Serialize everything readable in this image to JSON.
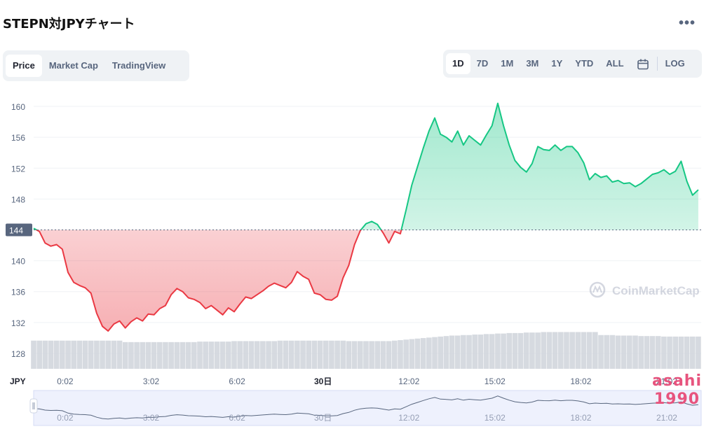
{
  "page_title": "STEPN対JPYチャート",
  "more_label": "•••",
  "tabs_left": [
    {
      "label": "Price",
      "active": true
    },
    {
      "label": "Market Cap",
      "active": false
    },
    {
      "label": "TradingView",
      "active": false
    }
  ],
  "tabs_right": [
    {
      "label": "1D",
      "active": true
    },
    {
      "label": "7D",
      "active": false
    },
    {
      "label": "1M",
      "active": false
    },
    {
      "label": "3M",
      "active": false
    },
    {
      "label": "1Y",
      "active": false
    },
    {
      "label": "YTD",
      "active": false
    },
    {
      "label": "ALL",
      "active": false
    }
  ],
  "log_label": "LOG",
  "icons": {
    "calendar": "calendar-icon",
    "brand": "coinmarketcap-logo-icon",
    "handle": "range-handle-icon"
  },
  "colors": {
    "up": "#16c784",
    "down": "#ea3943",
    "volume": "#cfd3da",
    "navigator": "#eef1fd"
  },
  "watermark": {
    "line1": "asahi",
    "line2": "1990"
  },
  "chart_data": {
    "type": "area",
    "title": "",
    "xlabel": "",
    "ylabel": "",
    "currency_label": "JPY",
    "brand": "CoinMarketCap",
    "baseline": 144,
    "baseline_label": "144",
    "ylim": [
      126,
      162
    ],
    "yticks": [
      160,
      156,
      152,
      148,
      144,
      140,
      136,
      132,
      128
    ],
    "ytick_labels": [
      "160",
      "156",
      "152",
      "148",
      "144",
      "140",
      "136",
      "132",
      "128"
    ],
    "xlim": [
      -1.1,
      22.2
    ],
    "xticks": [
      0,
      3,
      6,
      9,
      12,
      15,
      18,
      21
    ],
    "xtick_labels": [
      "0:02",
      "3:02",
      "6:02",
      "30日",
      "12:02",
      "15:02",
      "18:02",
      "21:02"
    ],
    "grid": true,
    "series": [
      {
        "x": [
          -1.1,
          -0.9,
          -0.7,
          -0.5,
          -0.3,
          -0.1,
          0.1,
          0.3,
          0.5,
          0.7,
          0.9,
          1.1,
          1.3,
          1.5,
          1.7,
          1.9,
          2.1,
          2.3,
          2.5,
          2.7,
          2.9,
          3.1,
          3.3,
          3.5,
          3.7,
          3.9,
          4.1,
          4.3,
          4.5,
          4.7,
          4.9,
          5.1,
          5.3,
          5.5,
          5.7,
          5.9,
          6.1,
          6.3,
          6.5,
          6.7,
          6.9,
          7.1,
          7.3,
          7.5,
          7.7,
          7.9,
          8.1,
          8.3,
          8.5,
          8.7,
          8.9,
          9.1,
          9.3,
          9.5,
          9.7,
          9.9,
          10.1,
          10.3,
          10.5,
          10.7,
          10.9,
          11.1,
          11.3,
          11.5,
          11.7,
          11.9,
          12.1,
          12.3,
          12.5,
          12.7,
          12.9,
          13.1,
          13.3,
          13.5,
          13.7,
          13.9,
          14.1,
          14.3,
          14.5,
          14.7,
          14.9,
          15.1,
          15.3,
          15.5,
          15.7,
          15.9,
          16.1,
          16.3,
          16.5,
          16.7,
          16.9,
          17.1,
          17.3,
          17.5,
          17.7,
          17.9,
          18.1,
          18.3,
          18.5,
          18.7,
          18.9,
          19.1,
          19.3,
          19.5,
          19.7,
          19.9,
          20.1,
          20.3,
          20.5,
          20.7,
          20.9,
          21.1,
          21.3,
          21.5,
          21.7,
          21.9,
          22.1
        ],
        "values": [
          144.2,
          143.8,
          142.3,
          141.9,
          142.1,
          141.5,
          138.5,
          137.2,
          136.8,
          136.5,
          135.8,
          133.2,
          131.5,
          130.9,
          131.8,
          132.2,
          131.3,
          132.1,
          132.6,
          132.2,
          133.1,
          133.0,
          133.8,
          134.2,
          135.6,
          136.4,
          136.0,
          135.2,
          135.0,
          134.6,
          133.8,
          134.2,
          133.6,
          133.0,
          133.9,
          133.4,
          134.4,
          135.3,
          135.1,
          135.6,
          136.1,
          136.7,
          137.1,
          136.8,
          136.5,
          137.2,
          138.6,
          138.0,
          137.6,
          135.8,
          135.6,
          135.0,
          134.9,
          135.4,
          137.8,
          139.4,
          142.1,
          143.9,
          144.8,
          145.1,
          144.7,
          143.6,
          142.3,
          143.8,
          143.5,
          146.6,
          149.8,
          152.2,
          154.6,
          156.8,
          158.5,
          156.4,
          156.0,
          155.4,
          156.8,
          155.0,
          156.2,
          155.6,
          155.0,
          156.3,
          157.5,
          160.4,
          157.5,
          155.0,
          153.0,
          152.1,
          151.5,
          152.6,
          154.8,
          154.4,
          154.3,
          155.0,
          154.3,
          154.8,
          154.8,
          154.0,
          152.7,
          150.5,
          151.3,
          150.8,
          151.0,
          150.2,
          150.4,
          150.0,
          150.1,
          149.6,
          150.0,
          150.6,
          151.2,
          151.4,
          151.8,
          151.2,
          151.6,
          152.9,
          150.3,
          148.5,
          149.2
        ]
      }
    ],
    "volume": {
      "values": [
        0.56,
        0.56,
        0.56,
        0.56,
        0.56,
        0.56,
        0.56,
        0.56,
        0.56,
        0.56,
        0.56,
        0.56,
        0.56,
        0.56,
        0.56,
        0.56,
        0.53,
        0.53,
        0.53,
        0.53,
        0.53,
        0.53,
        0.53,
        0.53,
        0.53,
        0.53,
        0.53,
        0.53,
        0.53,
        0.54,
        0.54,
        0.54,
        0.54,
        0.54,
        0.54,
        0.55,
        0.55,
        0.55,
        0.55,
        0.55,
        0.55,
        0.55,
        0.55,
        0.56,
        0.56,
        0.56,
        0.56,
        0.56,
        0.56,
        0.56,
        0.56,
        0.56,
        0.56,
        0.56,
        0.56,
        0.55,
        0.55,
        0.55,
        0.55,
        0.55,
        0.55,
        0.55,
        0.55,
        0.56,
        0.57,
        0.58,
        0.59,
        0.6,
        0.61,
        0.62,
        0.63,
        0.64,
        0.65,
        0.66,
        0.66,
        0.67,
        0.67,
        0.68,
        0.68,
        0.69,
        0.69,
        0.7,
        0.7,
        0.71,
        0.71,
        0.71,
        0.72,
        0.72,
        0.72,
        0.73,
        0.73,
        0.73,
        0.73,
        0.73,
        0.73,
        0.73,
        0.73,
        0.73,
        0.73,
        0.67,
        0.67,
        0.67,
        0.66,
        0.66,
        0.66,
        0.66,
        0.65,
        0.65,
        0.65,
        0.65,
        0.64,
        0.64,
        0.64,
        0.64,
        0.64,
        0.64,
        0.64
      ]
    }
  }
}
